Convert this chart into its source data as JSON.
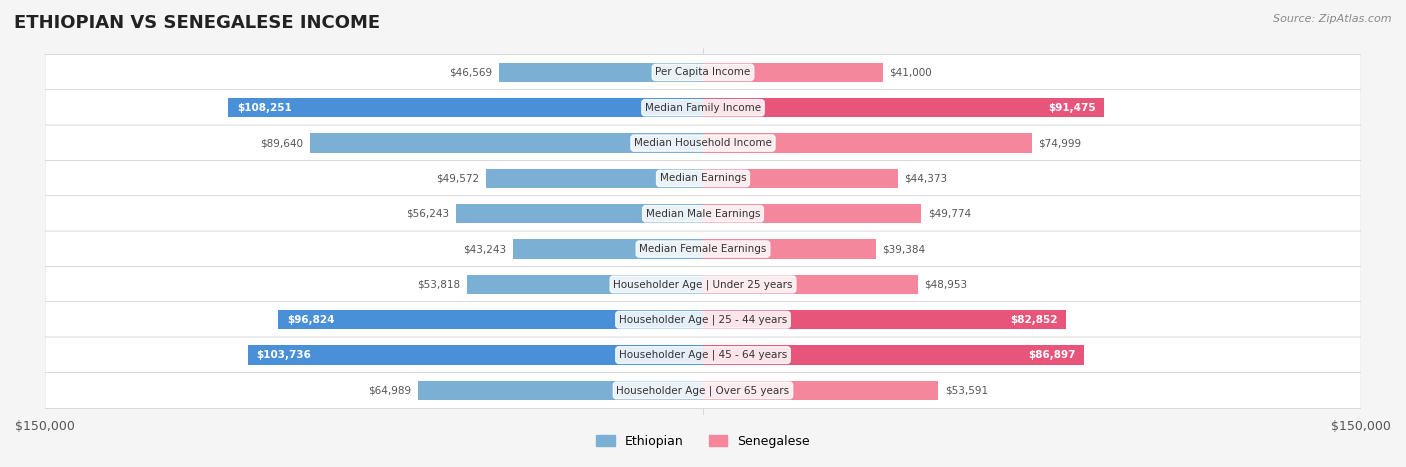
{
  "title": "ETHIOPIAN VS SENEGALESE INCOME",
  "source": "Source: ZipAtlas.com",
  "categories": [
    "Per Capita Income",
    "Median Family Income",
    "Median Household Income",
    "Median Earnings",
    "Median Male Earnings",
    "Median Female Earnings",
    "Householder Age | Under 25 years",
    "Householder Age | 25 - 44 years",
    "Householder Age | 45 - 64 years",
    "Householder Age | Over 65 years"
  ],
  "ethiopian_values": [
    46569,
    108251,
    89640,
    49572,
    56243,
    43243,
    53818,
    96824,
    103736,
    64989
  ],
  "senegalese_values": [
    41000,
    91475,
    74999,
    44373,
    49774,
    39384,
    48953,
    82852,
    86897,
    53591
  ],
  "ethiopian_labels": [
    "$46,569",
    "$108,251",
    "$89,640",
    "$49,572",
    "$56,243",
    "$43,243",
    "$53,818",
    "$96,824",
    "$103,736",
    "$64,989"
  ],
  "senegalese_labels": [
    "$41,000",
    "$91,475",
    "$74,999",
    "$44,373",
    "$49,774",
    "$39,384",
    "$48,953",
    "$82,852",
    "$86,897",
    "$53,591"
  ],
  "ethiopian_color": "#7bafd4",
  "senegalese_color": "#f4879c",
  "ethiopian_highlight": [
    false,
    true,
    false,
    false,
    false,
    false,
    false,
    true,
    true,
    false
  ],
  "senegalese_highlight": [
    false,
    true,
    false,
    false,
    false,
    false,
    false,
    true,
    true,
    false
  ],
  "max_value": 150000,
  "bar_height": 0.55,
  "background_color": "#f5f5f5",
  "row_bg_color": "#ffffff",
  "legend_ethiopian": "Ethiopian",
  "legend_senegalese": "Senegalese"
}
